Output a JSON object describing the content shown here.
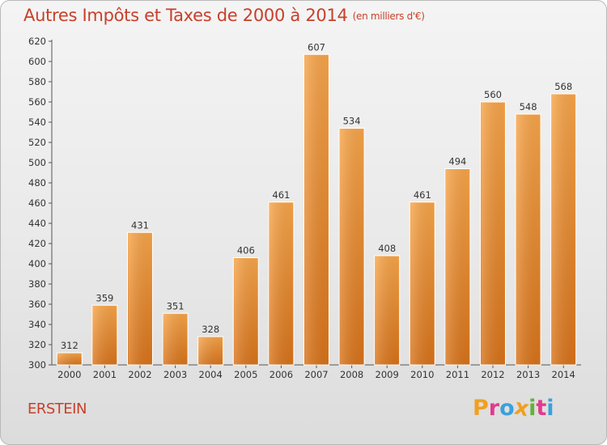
{
  "chart_data": {
    "type": "bar",
    "title": "Autres Impôts et Taxes de 2000 à 2014",
    "subtitle": "(en milliers d'€)",
    "categories": [
      "2000",
      "2001",
      "2002",
      "2003",
      "2004",
      "2005",
      "2006",
      "2007",
      "2008",
      "2009",
      "2010",
      "2011",
      "2012",
      "2013",
      "2014"
    ],
    "values": [
      312,
      359,
      431,
      351,
      328,
      406,
      461,
      607,
      534,
      408,
      461,
      494,
      560,
      548,
      568
    ],
    "xlabel": "",
    "ylabel": "",
    "ylim": [
      300,
      620
    ],
    "yticks": [
      300,
      320,
      340,
      360,
      380,
      400,
      420,
      440,
      460,
      480,
      500,
      520,
      540,
      560,
      580,
      600,
      620
    ],
    "grid": false,
    "bar_color": "#f0912c"
  },
  "footer": {
    "commune": "ERSTEIN",
    "logo": [
      "P",
      "r",
      "o",
      "x",
      "i",
      "t",
      "i"
    ],
    "logo_colors": [
      "#f0a020",
      "#e23a8c",
      "#3aa0dc",
      "#f0a020",
      "#62b23a",
      "#e23a8c",
      "#3aa0dc"
    ]
  }
}
